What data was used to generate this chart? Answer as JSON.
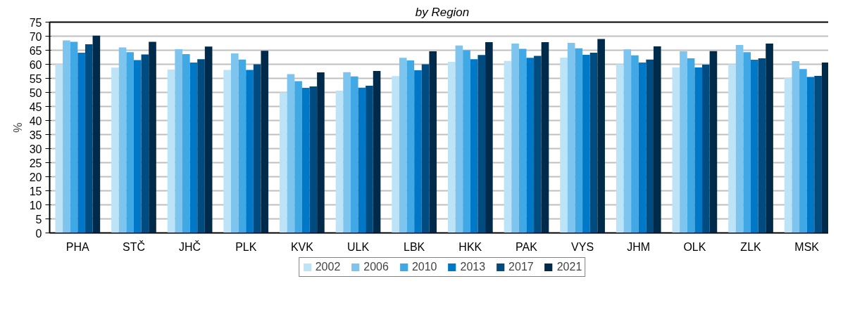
{
  "chart_data": {
    "type": "bar",
    "title": "by Region",
    "ylabel": "%",
    "categories": [
      "PHA",
      "STČ",
      "JHČ",
      "PLK",
      "KVK",
      "ULK",
      "LBK",
      "HKK",
      "PAK",
      "VYS",
      "JHM",
      "OLK",
      "ZLK",
      "MSK"
    ],
    "series": [
      {
        "name": "2002",
        "color": "#bde3f7",
        "values": [
          60.0,
          58.8,
          58.1,
          58.0,
          50.0,
          50.6,
          55.8,
          60.9,
          61.2,
          62.4,
          60.0,
          58.9,
          60.0,
          55.2
        ]
      },
      {
        "name": "2006",
        "color": "#7dc4ee",
        "values": [
          68.5,
          66.0,
          65.4,
          63.9,
          56.5,
          57.2,
          62.3,
          66.7,
          67.4,
          67.6,
          65.3,
          64.6,
          66.9,
          61.1
        ]
      },
      {
        "name": "2010",
        "color": "#3fa8e5",
        "values": [
          68.0,
          64.3,
          63.6,
          61.7,
          54.0,
          55.7,
          61.4,
          65.0,
          65.5,
          65.7,
          63.2,
          62.1,
          64.3,
          58.3
        ]
      },
      {
        "name": "2013",
        "color": "#0078c8",
        "values": [
          64.1,
          61.5,
          60.6,
          58.0,
          51.6,
          51.7,
          57.9,
          61.8,
          62.3,
          63.4,
          60.6,
          58.9,
          61.6,
          55.5
        ]
      },
      {
        "name": "2017",
        "color": "#004b80",
        "values": [
          67.1,
          63.5,
          61.8,
          60.0,
          52.1,
          52.4,
          60.0,
          63.3,
          63.0,
          64.1,
          61.7,
          59.9,
          62.1,
          55.9
        ]
      },
      {
        "name": "2021",
        "color": "#002a4a",
        "values": [
          70.2,
          68.0,
          66.3,
          64.8,
          57.1,
          57.6,
          64.6,
          67.9,
          67.9,
          69.0,
          66.4,
          64.7,
          67.4,
          60.6
        ]
      }
    ],
    "ylim": [
      0,
      75
    ],
    "yticks": [
      0,
      5,
      10,
      15,
      20,
      25,
      30,
      35,
      40,
      45,
      50,
      55,
      60,
      65,
      70,
      75
    ],
    "grid": "y",
    "legend": "bottom"
  }
}
